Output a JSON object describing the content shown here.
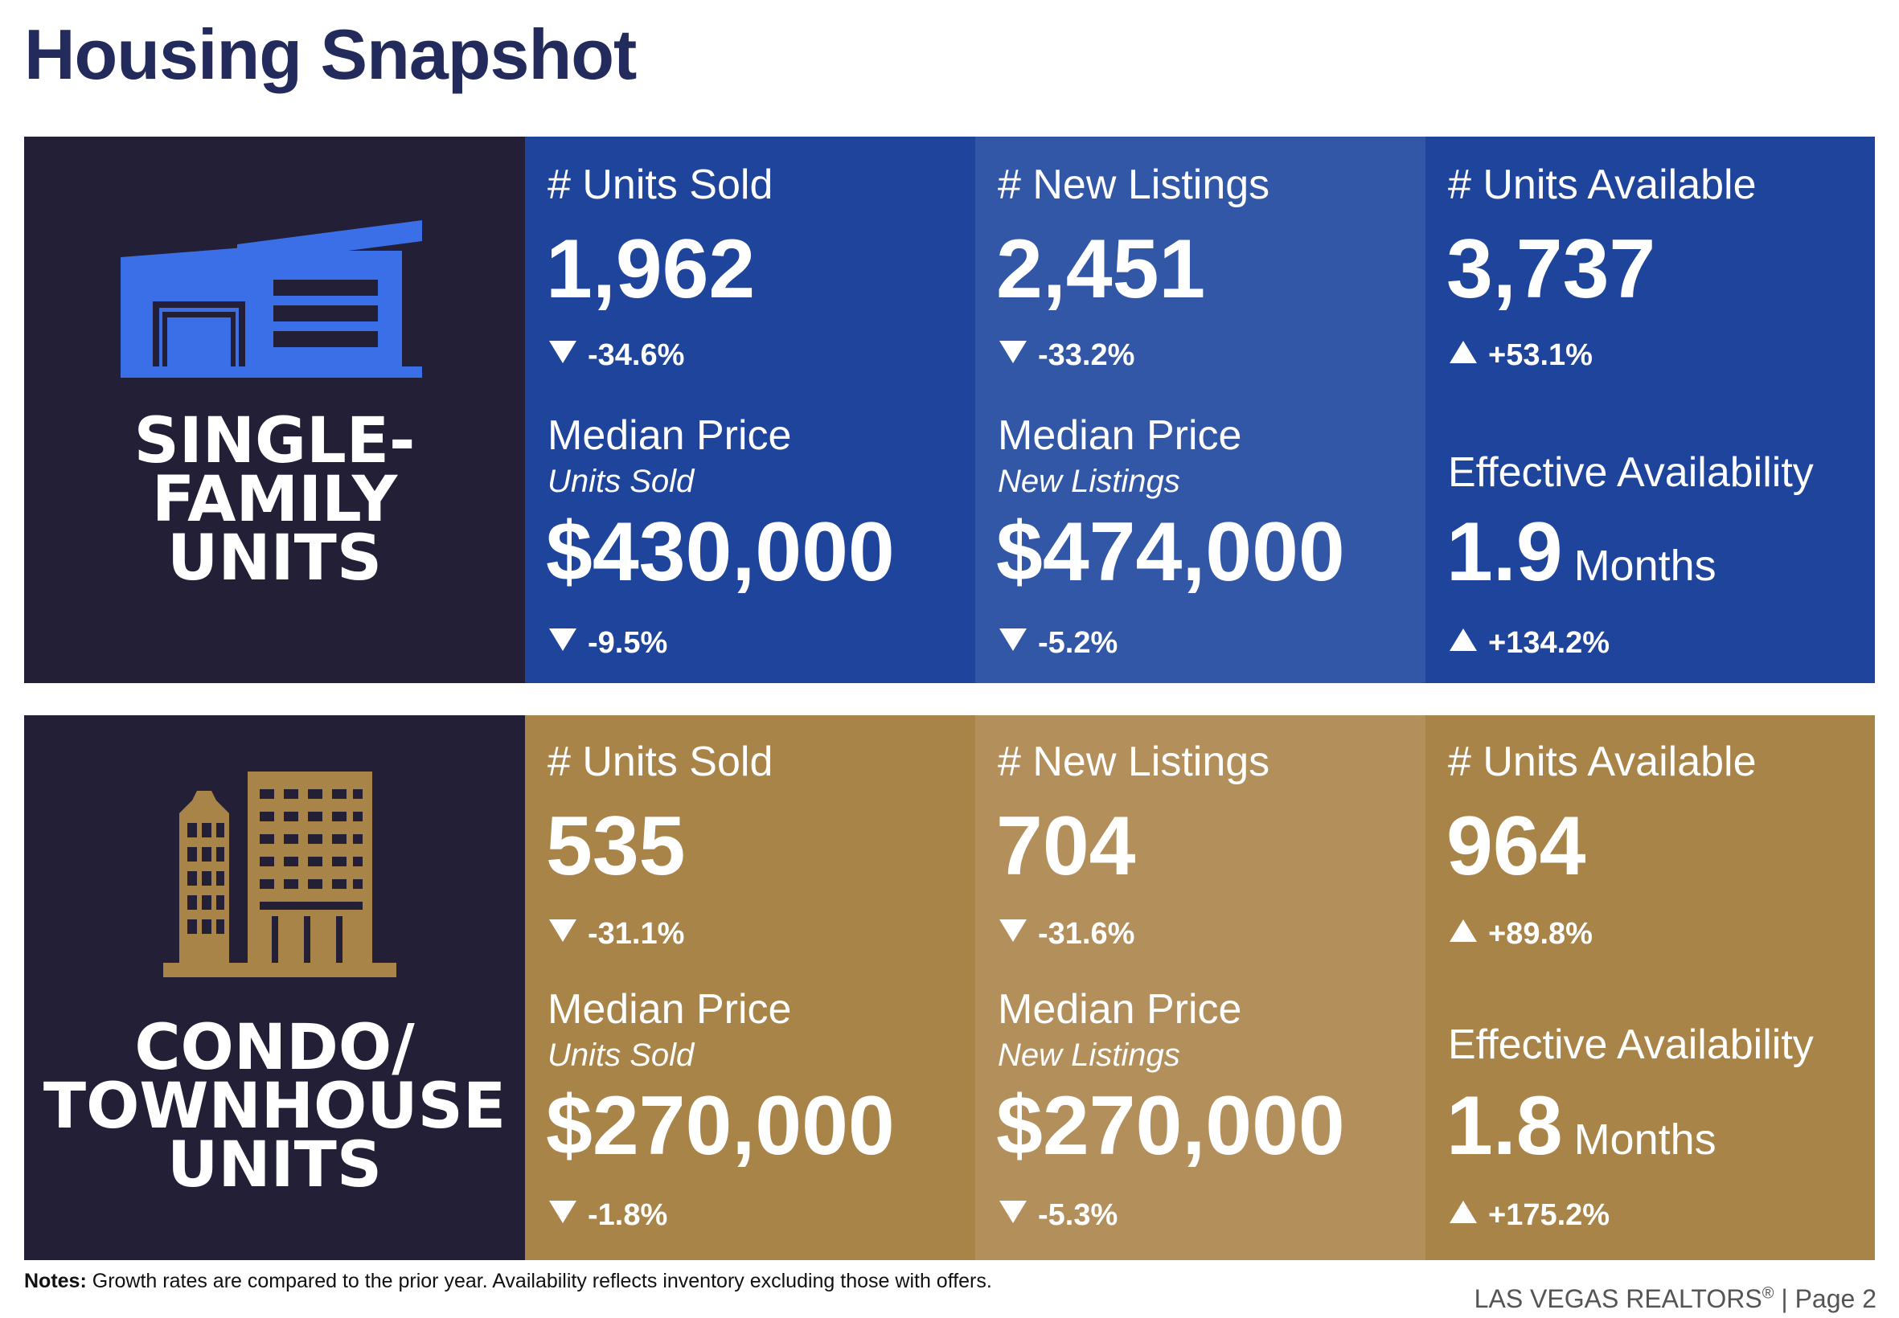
{
  "page_title": "Housing Snapshot",
  "colors": {
    "navy": "#231f37",
    "sf_dark": "#1e449c",
    "sf_light": "#3257a6",
    "ct_dark": "#a88449",
    "ct_light": "#b38f5c",
    "sf_icon": "#3b6fe8",
    "ct_icon": "#a88449",
    "title": "#232a5c"
  },
  "single_family": {
    "icon": "house-icon",
    "label_lines": [
      "SINGLE-",
      "FAMILY",
      "UNITS"
    ],
    "units_sold": {
      "label": "# Units Sold",
      "value": "1,962",
      "change": "-34.6%",
      "direction": "down"
    },
    "new_listings": {
      "label": "# New Listings",
      "value": "2,451",
      "change": "-33.2%",
      "direction": "down"
    },
    "units_available": {
      "label": "# Units Available",
      "value": "3,737",
      "change": "+53.1%",
      "direction": "up"
    },
    "median_sold": {
      "label": "Median Price",
      "sublabel": "Units Sold",
      "value": "$430,000",
      "change": "-9.5%",
      "direction": "down"
    },
    "median_listings": {
      "label": "Median Price",
      "sublabel": "New Listings",
      "value": "$474,000",
      "change": "-5.2%",
      "direction": "down"
    },
    "effective_availability": {
      "label": "Effective Availability",
      "value": "1.9",
      "unit": "Months",
      "change": "+134.2%",
      "direction": "up"
    }
  },
  "condo_townhouse": {
    "icon": "buildings-icon",
    "label_lines": [
      "CONDO/",
      "TOWNHOUSE",
      "UNITS"
    ],
    "units_sold": {
      "label": "# Units Sold",
      "value": "535",
      "change": "-31.1%",
      "direction": "down"
    },
    "new_listings": {
      "label": "# New Listings",
      "value": "704",
      "change": "-31.6%",
      "direction": "down"
    },
    "units_available": {
      "label": "# Units Available",
      "value": "964",
      "change": "+89.8%",
      "direction": "up"
    },
    "median_sold": {
      "label": "Median Price",
      "sublabel": "Units Sold",
      "value": "$270,000",
      "change": "-1.8%",
      "direction": "down"
    },
    "median_listings": {
      "label": "Median Price",
      "sublabel": "New Listings",
      "value": "$270,000",
      "change": "-5.3%",
      "direction": "down"
    },
    "effective_availability": {
      "label": "Effective Availability",
      "value": "1.8",
      "unit": "Months",
      "change": "+175.2%",
      "direction": "up"
    }
  },
  "notes": {
    "label": "Notes:",
    "text": " Growth rates are compared to the prior year. Availability reflects inventory excluding those with offers."
  },
  "footer": {
    "org": "LAS VEGAS REALTORS",
    "reg": "®",
    "page": " | Page 2"
  }
}
